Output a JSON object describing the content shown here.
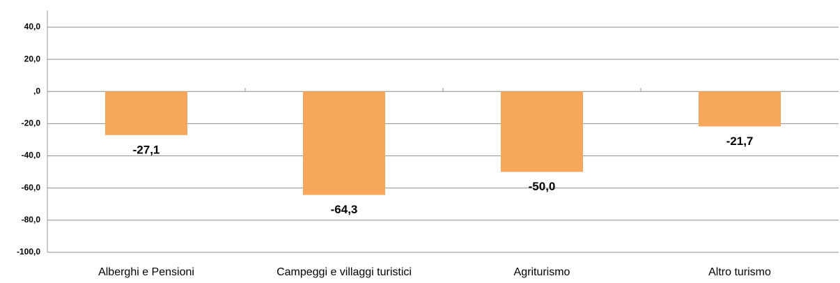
{
  "chart_data": {
    "type": "bar",
    "categories": [
      "Alberghi e Pensioni",
      "Campeggi e villaggi turistici",
      "Agriturismo",
      "Altro turismo"
    ],
    "values": [
      -27.1,
      -64.3,
      -50.0,
      -21.7
    ],
    "value_labels": [
      "-27,1",
      "-64,3",
      "-50,0",
      "-21,7"
    ],
    "color": "#f6a75b",
    "ylim": [
      -100,
      40
    ],
    "yticks": [
      {
        "value": -100,
        "label": "-100,0"
      },
      {
        "value": -80,
        "label": "-80,0"
      },
      {
        "value": -60,
        "label": "-60,0"
      },
      {
        "value": -40,
        "label": "-40,0"
      },
      {
        "value": -20,
        "label": "-20,0"
      },
      {
        "value": 0,
        "label": ",0"
      },
      {
        "value": 20,
        "label": "20,0"
      },
      {
        "value": 40,
        "label": "40,0"
      }
    ],
    "grid": true
  }
}
